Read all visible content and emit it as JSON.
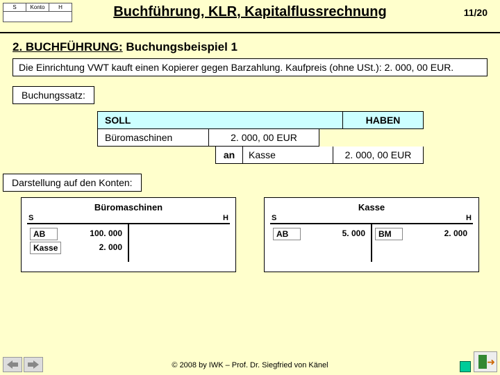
{
  "header": {
    "logo": {
      "s": "S",
      "konto": "Konto",
      "h": "H"
    },
    "title": "Buchführung, KLR, Kapitalflussrechnung",
    "page": "11/20"
  },
  "section": {
    "prefix": "2. BUCHFÜHRUNG:",
    "subtitle": "Buchungsbeispiel 1"
  },
  "example": "Die Einrichtung VWT kauft einen Kopierer gegen Barzahlung. Kaufpreis (ohne USt.): 2. 000, 00 EUR.",
  "bs_label": "Buchungssatz:",
  "entry": {
    "soll_label": "SOLL",
    "haben_label": "HABEN",
    "debit_account": "Büromaschinen",
    "debit_amount": "2. 000, 00 EUR",
    "an": "an",
    "credit_account": "Kasse",
    "credit_amount": "2. 000, 00 EUR"
  },
  "darst_label": "Darstellung auf den Konten:",
  "tacc": {
    "s": "S",
    "h": "H",
    "left": {
      "title": "Büromaschinen",
      "rows_left": [
        {
          "lbl": "AB",
          "val": "100. 000"
        },
        {
          "lbl": "Kasse",
          "val": "2. 000"
        }
      ],
      "rows_right": []
    },
    "right": {
      "title": "Kasse",
      "rows_left": [
        {
          "lbl": "AB",
          "val": "5. 000"
        }
      ],
      "rows_right": [
        {
          "lbl": "BM",
          "val": "2. 000"
        }
      ]
    }
  },
  "footer": "© 2008 by IWK – Prof. Dr. Siegfried von Känel"
}
